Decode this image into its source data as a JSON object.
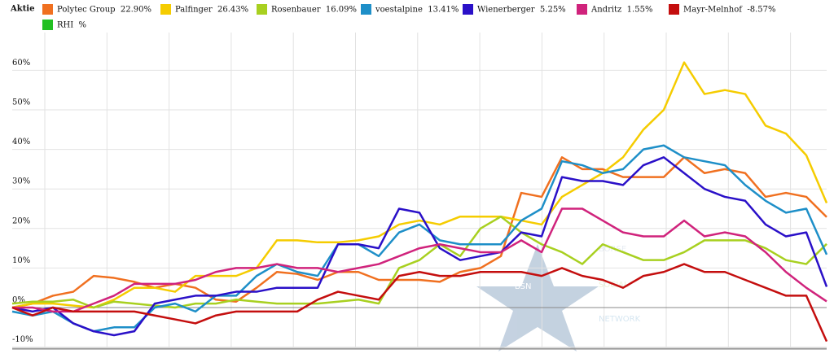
{
  "chart_data": {
    "type": "line",
    "legend_title": "Aktie",
    "watermark": {
      "logo": "BSN",
      "lines": [
        "BÖRSE",
        "SOCIAL",
        "NETWORK"
      ]
    },
    "categories": [
      null,
      null,
      null,
      null,
      null,
      null,
      null,
      null,
      null,
      null,
      null,
      null,
      null,
      null,
      null,
      null,
      null,
      null,
      null,
      null,
      null,
      null,
      null,
      null,
      null,
      null,
      null,
      null,
      null,
      null,
      null,
      null,
      null,
      null,
      null,
      null,
      null,
      null,
      null,
      null,
      null
    ],
    "ylim": [
      -10,
      70
    ],
    "yticks": [
      {
        "value": -10,
        "label": "-10%"
      },
      {
        "value": 0,
        "label": "0%"
      },
      {
        "value": 10,
        "label": "10%"
      },
      {
        "value": 20,
        "label": "20%"
      },
      {
        "value": 30,
        "label": "30%"
      },
      {
        "value": 40,
        "label": "40%"
      },
      {
        "value": 50,
        "label": "50%"
      },
      {
        "value": 60,
        "label": "60%"
      }
    ],
    "grid": true,
    "series": [
      {
        "name": "Polytec Group  22.90%",
        "color": "#f07020",
        "values": [
          0,
          1,
          3,
          4,
          8,
          7.5,
          6.5,
          5,
          6,
          5,
          2,
          1.5,
          5,
          9,
          8.5,
          7,
          9,
          9,
          7,
          7,
          7,
          6.5,
          9,
          10,
          13,
          29,
          28,
          38,
          35,
          35,
          33,
          33,
          33,
          38,
          34,
          35,
          34,
          28,
          29,
          28,
          22.9
        ]
      },
      {
        "name": "Palfinger  26.43%",
        "color": "#f5cc00",
        "values": [
          0,
          1,
          1,
          0.5,
          0,
          2,
          5,
          5,
          4,
          8,
          8,
          8,
          10,
          17,
          17,
          16.5,
          16.5,
          17,
          18,
          21,
          22,
          21,
          23,
          23,
          23,
          22,
          21,
          28,
          31,
          34,
          38,
          45,
          50,
          62,
          54,
          55,
          54,
          46,
          44,
          38.5,
          26.43
        ]
      },
      {
        "name": "Rosenbauer  16.09%",
        "color": "#a8d020",
        "values": [
          1,
          1.5,
          1.5,
          2,
          0,
          1.5,
          1,
          0.5,
          0,
          1,
          1,
          2,
          1.5,
          1,
          1,
          1,
          1.5,
          2,
          1,
          10,
          12,
          16,
          13,
          20,
          23,
          19,
          16,
          14,
          11,
          16,
          14,
          12,
          12,
          14,
          17,
          17,
          17,
          15,
          12,
          11,
          16.09
        ]
      },
      {
        "name": "voestalpine  13.41%",
        "color": "#1e8fc8",
        "values": [
          -1,
          -2,
          -1,
          -4,
          -6,
          -5,
          -5,
          0,
          1,
          -1,
          3,
          3,
          8,
          11,
          9,
          8,
          16,
          16,
          13,
          19,
          21,
          17,
          16,
          16,
          16,
          22,
          25,
          37,
          36,
          34,
          35,
          40,
          41,
          38,
          37,
          36,
          31,
          27,
          24,
          25,
          13.41
        ]
      },
      {
        "name": "Wienerberger  5.25%",
        "color": "#2a10c8",
        "values": [
          0,
          -1,
          0,
          -4,
          -6,
          -7,
          -6,
          1,
          2,
          3,
          3,
          4,
          4,
          5,
          5,
          5,
          16,
          16,
          15,
          25,
          24,
          15,
          12,
          13,
          14,
          19,
          18,
          33,
          32,
          32,
          31,
          36,
          38,
          34,
          30,
          28,
          27,
          21,
          18,
          19,
          5.25
        ]
      },
      {
        "name": "Andritz  1.55%",
        "color": "#d0237c",
        "values": [
          0,
          0,
          -1,
          -1,
          1,
          3,
          6,
          6,
          6,
          7,
          9,
          10,
          10,
          11,
          10,
          10,
          9,
          10,
          11,
          13,
          15,
          16,
          15,
          14,
          14,
          17,
          14,
          25,
          25,
          22,
          19,
          18,
          18,
          22,
          18,
          19,
          18,
          14,
          9,
          5,
          1.55
        ]
      },
      {
        "name": "Mayr-Melnhof  -8.57%",
        "color": "#c40e0e",
        "values": [
          0,
          -2,
          0,
          -1,
          -1,
          -1,
          -1,
          -2,
          -3,
          -4,
          -2,
          -1,
          -1,
          -1,
          -1,
          2,
          4,
          3,
          2,
          8,
          9,
          8,
          8,
          9,
          9,
          9,
          8,
          10,
          8,
          7,
          5,
          8,
          9,
          11,
          9,
          9,
          7,
          5,
          3,
          3,
          -8.57
        ]
      },
      {
        "name": "RHI  %",
        "color": "#22c022",
        "values": [
          null,
          null,
          null,
          null,
          null,
          null,
          null,
          null,
          null,
          null,
          null,
          null,
          null,
          null,
          null,
          null,
          null,
          null,
          null,
          null,
          null,
          null,
          null,
          null,
          null,
          null,
          null,
          null,
          null,
          null,
          null,
          null,
          null,
          null,
          null,
          null,
          null,
          null,
          null,
          null,
          null
        ]
      }
    ]
  }
}
